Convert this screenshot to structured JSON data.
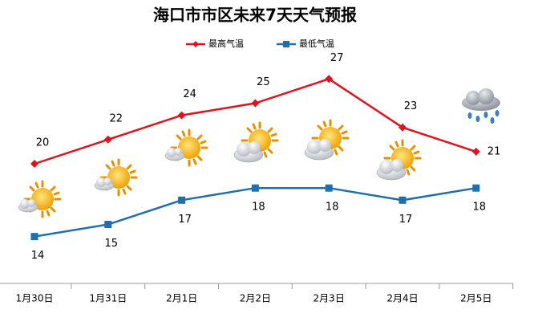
{
  "chart_data": {
    "type": "line",
    "title": "海口市市区未来7天天气预报",
    "categories": [
      "1月30日",
      "1月31日",
      "2月1日",
      "2月2日",
      "2月3日",
      "2月4日",
      "2月5日"
    ],
    "series": [
      {
        "name": "最高气温",
        "color": "#e0141e",
        "values": [
          20,
          22,
          24,
          25,
          27,
          23,
          21
        ]
      },
      {
        "name": "最低气温",
        "color": "#1f6fb0",
        "values": [
          14,
          15,
          17,
          18,
          18,
          17,
          18
        ]
      }
    ]
  }
}
